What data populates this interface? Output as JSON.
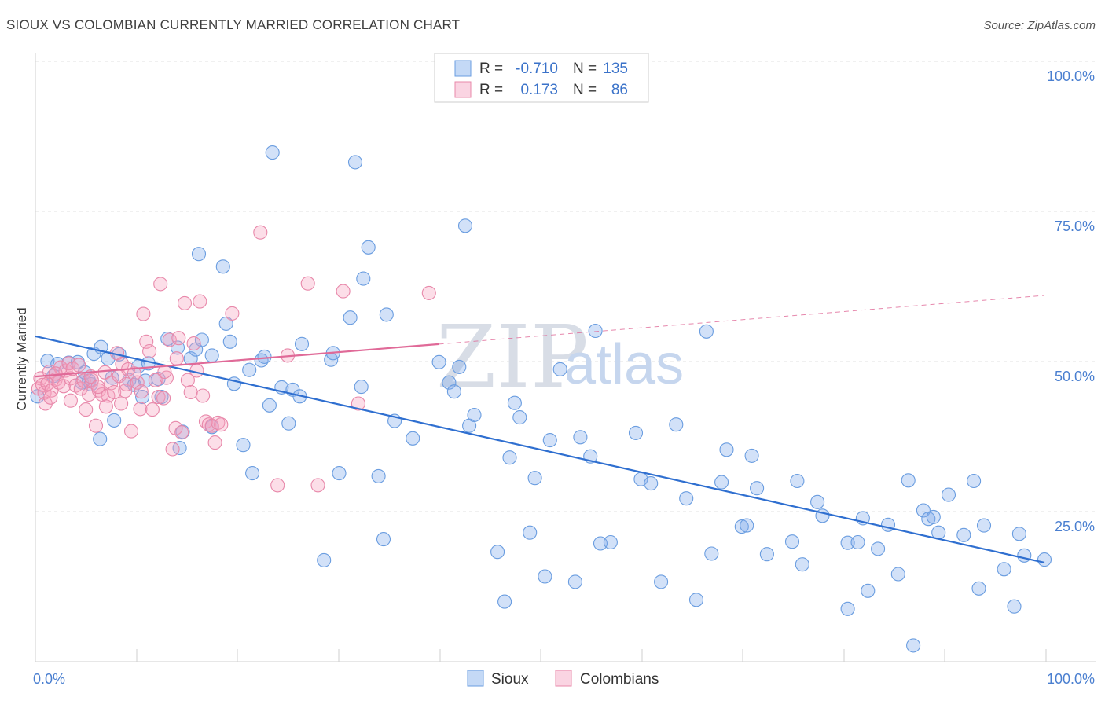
{
  "title": "SIOUX VS COLOMBIAN CURRENTLY MARRIED CORRELATION CHART",
  "source": "Source: ZipAtlas.com",
  "watermark": {
    "zip": "ZIP",
    "atlas": "atlas"
  },
  "legend": {
    "r_label": "R =",
    "n_label": "N =",
    "rows": [
      {
        "r": "-0.710",
        "n": "135",
        "color": "#4a7fd0"
      },
      {
        "r": "0.173",
        "n": "86",
        "color": "#4a7fd0"
      }
    ]
  },
  "bottom_legend": [
    "Sioux",
    "Colombians"
  ],
  "chart_data": {
    "type": "scatter",
    "ylabel": "Currently Married",
    "xlim": [
      0,
      100
    ],
    "ylim": [
      0,
      100
    ],
    "x_tick_labels": [
      "0.0%",
      "100.0%"
    ],
    "y_tick_labels": [
      "100.0%",
      "75.0%",
      "50.0%",
      "25.0%"
    ],
    "y_ticks": [
      100,
      75,
      50,
      25
    ],
    "series": [
      {
        "name": "Sioux",
        "fill": "rgba(125,170,235,0.35)",
        "stroke": "#6a9de0",
        "trend": {
          "x": [
            0,
            100
          ],
          "y": [
            54.2,
            16.5
          ],
          "color": "#2f6fd0",
          "dashed_from": null
        },
        "points": [
          [
            0.2,
            44.2
          ],
          [
            1.2,
            50.1
          ],
          [
            1.8,
            47.6
          ],
          [
            2.2,
            49.6
          ],
          [
            3.3,
            49.8
          ],
          [
            4.2,
            49.9
          ],
          [
            4.6,
            46.5
          ],
          [
            4.9,
            48.2
          ],
          [
            5.8,
            51.3
          ],
          [
            5.3,
            46.8
          ],
          [
            5.5,
            46.2
          ],
          [
            6.5,
            52.4
          ],
          [
            6.4,
            37.1
          ],
          [
            7.2,
            50.5
          ],
          [
            7.6,
            47.3
          ],
          [
            7.8,
            40.2
          ],
          [
            8.3,
            51.2
          ],
          [
            9.3,
            46.9
          ],
          [
            9.8,
            46.1
          ],
          [
            10.2,
            49.2
          ],
          [
            10.6,
            44.1
          ],
          [
            10.9,
            46.8
          ],
          [
            11.2,
            49.7
          ],
          [
            12.2,
            47.1
          ],
          [
            12.5,
            44.1
          ],
          [
            13.1,
            53.8
          ],
          [
            14.1,
            52.3
          ],
          [
            14.3,
            35.6
          ],
          [
            14.6,
            38.3
          ],
          [
            15.4,
            50.5
          ],
          [
            15.9,
            52.0
          ],
          [
            16.2,
            67.9
          ],
          [
            16.5,
            53.6
          ],
          [
            17.5,
            39.1
          ],
          [
            17.5,
            51.0
          ],
          [
            18.6,
            65.8
          ],
          [
            18.9,
            56.3
          ],
          [
            19.3,
            53.3
          ],
          [
            19.7,
            46.3
          ],
          [
            20.6,
            36.1
          ],
          [
            21.2,
            48.6
          ],
          [
            21.5,
            31.4
          ],
          [
            22.4,
            50.2
          ],
          [
            22.7,
            50.8
          ],
          [
            23.2,
            42.7
          ],
          [
            23.5,
            84.8
          ],
          [
            24.4,
            45.7
          ],
          [
            25.1,
            39.7
          ],
          [
            25.5,
            45.3
          ],
          [
            26.2,
            44.2
          ],
          [
            26.4,
            52.9
          ],
          [
            28.6,
            16.9
          ],
          [
            29.3,
            50.3
          ],
          [
            29.5,
            51.4
          ],
          [
            30.1,
            31.4
          ],
          [
            31.2,
            57.3
          ],
          [
            31.7,
            83.2
          ],
          [
            32.3,
            45.8
          ],
          [
            32.5,
            63.8
          ],
          [
            33.0,
            69.0
          ],
          [
            34.0,
            30.9
          ],
          [
            34.5,
            20.4
          ],
          [
            34.8,
            57.8
          ],
          [
            35.6,
            40.1
          ],
          [
            37.4,
            37.2
          ],
          [
            40.0,
            49.9
          ],
          [
            41.0,
            46.5
          ],
          [
            41.5,
            45.0
          ],
          [
            42.0,
            49.1
          ],
          [
            42.6,
            72.6
          ],
          [
            43.0,
            39.3
          ],
          [
            43.5,
            41.1
          ],
          [
            45.8,
            18.3
          ],
          [
            46.5,
            10.0
          ],
          [
            47.0,
            34.0
          ],
          [
            47.5,
            43.1
          ],
          [
            48.0,
            40.7
          ],
          [
            49.0,
            21.5
          ],
          [
            49.5,
            30.6
          ],
          [
            50.5,
            14.2
          ],
          [
            51.0,
            36.9
          ],
          [
            52.0,
            48.7
          ],
          [
            53.5,
            13.3
          ],
          [
            54.0,
            37.4
          ],
          [
            55.0,
            34.2
          ],
          [
            55.5,
            55.1
          ],
          [
            56.0,
            19.7
          ],
          [
            57.0,
            19.9
          ],
          [
            59.5,
            38.1
          ],
          [
            60.0,
            30.4
          ],
          [
            61.0,
            29.7
          ],
          [
            62.0,
            13.3
          ],
          [
            63.5,
            39.5
          ],
          [
            64.5,
            27.2
          ],
          [
            65.5,
            10.3
          ],
          [
            66.5,
            55.0
          ],
          [
            67.0,
            18.0
          ],
          [
            68.0,
            29.9
          ],
          [
            68.5,
            35.3
          ],
          [
            70.0,
            22.5
          ],
          [
            70.5,
            22.7
          ],
          [
            71.0,
            34.3
          ],
          [
            71.5,
            28.9
          ],
          [
            72.5,
            17.9
          ],
          [
            75.0,
            20.0
          ],
          [
            75.5,
            30.1
          ],
          [
            76.0,
            16.2
          ],
          [
            77.5,
            26.6
          ],
          [
            78.0,
            24.3
          ],
          [
            80.5,
            8.8
          ],
          [
            80.5,
            19.8
          ],
          [
            81.5,
            19.9
          ],
          [
            82.0,
            23.9
          ],
          [
            82.5,
            11.8
          ],
          [
            83.5,
            18.8
          ],
          [
            84.5,
            22.8
          ],
          [
            85.5,
            14.6
          ],
          [
            86.5,
            30.2
          ],
          [
            87.0,
            2.7
          ],
          [
            88.0,
            25.2
          ],
          [
            88.5,
            23.8
          ],
          [
            89.0,
            24.1
          ],
          [
            89.5,
            21.5
          ],
          [
            90.5,
            27.8
          ],
          [
            92.0,
            21.1
          ],
          [
            93.0,
            30.1
          ],
          [
            93.5,
            12.2
          ],
          [
            94.0,
            22.7
          ],
          [
            96.0,
            15.4
          ],
          [
            97.0,
            9.2
          ],
          [
            97.5,
            21.3
          ],
          [
            98.0,
            17.7
          ],
          [
            100.0,
            17.0
          ]
        ]
      },
      {
        "name": "Colombians",
        "fill": "rgba(245,160,190,0.35)",
        "stroke": "#e888aa",
        "trend": {
          "x": [
            0,
            100
          ],
          "y": [
            47.5,
            61.0
          ],
          "color": "#e06a98",
          "dashed_from": 40
        },
        "points": [
          [
            0.3,
            45.5
          ],
          [
            0.5,
            47.2
          ],
          [
            0.7,
            46.1
          ],
          [
            0.9,
            44.8
          ],
          [
            1.0,
            43.0
          ],
          [
            1.2,
            46.3
          ],
          [
            1.4,
            48.3
          ],
          [
            1.6,
            45.2
          ],
          [
            2.0,
            47.0
          ],
          [
            2.3,
            46.5
          ],
          [
            2.5,
            49.0
          ],
          [
            2.8,
            45.9
          ],
          [
            3.0,
            48.5
          ],
          [
            3.3,
            49.7
          ],
          [
            3.5,
            47.2
          ],
          [
            3.7,
            48.8
          ],
          [
            4.0,
            46.0
          ],
          [
            4.3,
            49.4
          ],
          [
            4.5,
            45.5
          ],
          [
            4.8,
            46.8
          ],
          [
            5.0,
            42.0
          ],
          [
            5.3,
            44.5
          ],
          [
            5.6,
            46.9
          ],
          [
            6.0,
            39.3
          ],
          [
            6.3,
            45.2
          ],
          [
            6.6,
            44.5
          ],
          [
            6.9,
            48.2
          ],
          [
            7.2,
            44.3
          ],
          [
            7.5,
            46.4
          ],
          [
            7.8,
            44.9
          ],
          [
            8.1,
            51.4
          ],
          [
            8.3,
            47.6
          ],
          [
            8.6,
            49.6
          ],
          [
            8.9,
            45.1
          ],
          [
            9.0,
            46.2
          ],
          [
            9.2,
            48.7
          ],
          [
            9.5,
            38.4
          ],
          [
            9.8,
            48.0
          ],
          [
            10.1,
            46.5
          ],
          [
            10.4,
            42.1
          ],
          [
            10.7,
            57.9
          ],
          [
            11.0,
            53.3
          ],
          [
            11.3,
            51.7
          ],
          [
            11.6,
            42.0
          ],
          [
            11.9,
            46.9
          ],
          [
            12.2,
            44.1
          ],
          [
            12.4,
            62.9
          ],
          [
            12.7,
            43.9
          ],
          [
            13.0,
            47.3
          ],
          [
            13.3,
            53.6
          ],
          [
            13.6,
            35.4
          ],
          [
            13.9,
            38.9
          ],
          [
            14.2,
            53.9
          ],
          [
            14.5,
            38.2
          ],
          [
            14.8,
            59.7
          ],
          [
            15.1,
            46.9
          ],
          [
            15.4,
            44.9
          ],
          [
            15.7,
            53.0
          ],
          [
            16.0,
            48.5
          ],
          [
            16.3,
            60.0
          ],
          [
            16.6,
            44.3
          ],
          [
            16.9,
            40.0
          ],
          [
            17.2,
            39.5
          ],
          [
            17.5,
            39.3
          ],
          [
            17.8,
            36.5
          ],
          [
            18.1,
            39.8
          ],
          [
            18.4,
            39.5
          ],
          [
            19.5,
            58.0
          ],
          [
            22.3,
            71.5
          ],
          [
            24.0,
            29.4
          ],
          [
            25.0,
            51.0
          ],
          [
            27.0,
            63.0
          ],
          [
            28.0,
            29.4
          ],
          [
            30.5,
            61.7
          ],
          [
            32.0,
            43.0
          ],
          [
            39.0,
            61.4
          ],
          [
            1.5,
            44.0
          ],
          [
            2.0,
            48.0
          ],
          [
            3.5,
            43.5
          ],
          [
            5.5,
            47.5
          ],
          [
            6.2,
            45.8
          ],
          [
            8.5,
            43.0
          ],
          [
            10.5,
            45.0
          ],
          [
            12.8,
            48.3
          ],
          [
            14.0,
            50.5
          ],
          [
            7.0,
            42.5
          ]
        ]
      }
    ]
  }
}
